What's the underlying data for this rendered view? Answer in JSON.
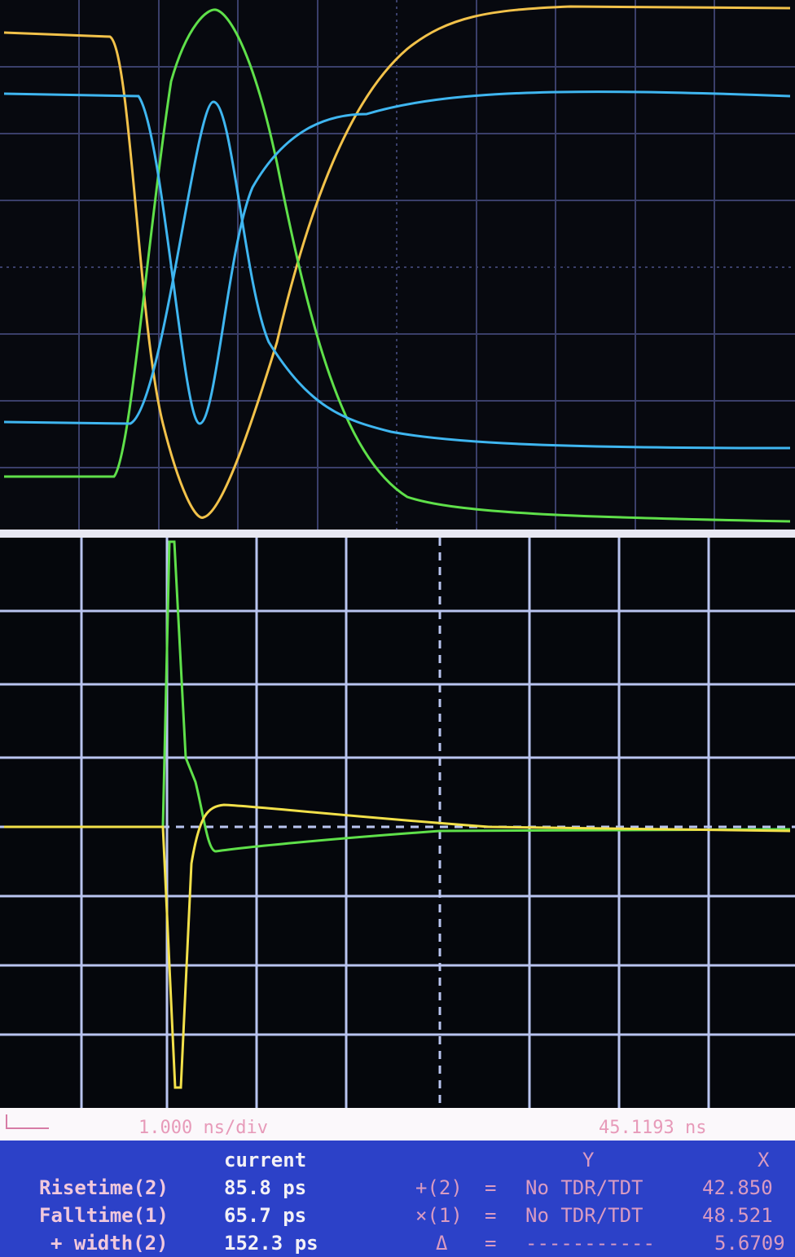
{
  "timebase": {
    "scale": "1.000 ns/div",
    "position": "45.1193 ns"
  },
  "measurements": {
    "column_header": "current",
    "rows": [
      {
        "label": "Risetime(2)",
        "value": "85.8 ps"
      },
      {
        "label": "Falltime(1)",
        "value": "65.7 ps"
      },
      {
        "label": "+ width(2)",
        "value": "152.3 ps"
      }
    ]
  },
  "markers": {
    "headers": [
      "Y",
      "X"
    ],
    "rows": [
      {
        "label": "+(2)",
        "sign": "=",
        "y": "No TDR/TDT",
        "x": "42.850"
      },
      {
        "label": "×(1)",
        "sign": "=",
        "y": "No TDR/TDT",
        "x": "48.521"
      },
      {
        "label": "Δ",
        "sign": "=",
        "y": "-----------",
        "x": "5.6709"
      }
    ]
  }
}
